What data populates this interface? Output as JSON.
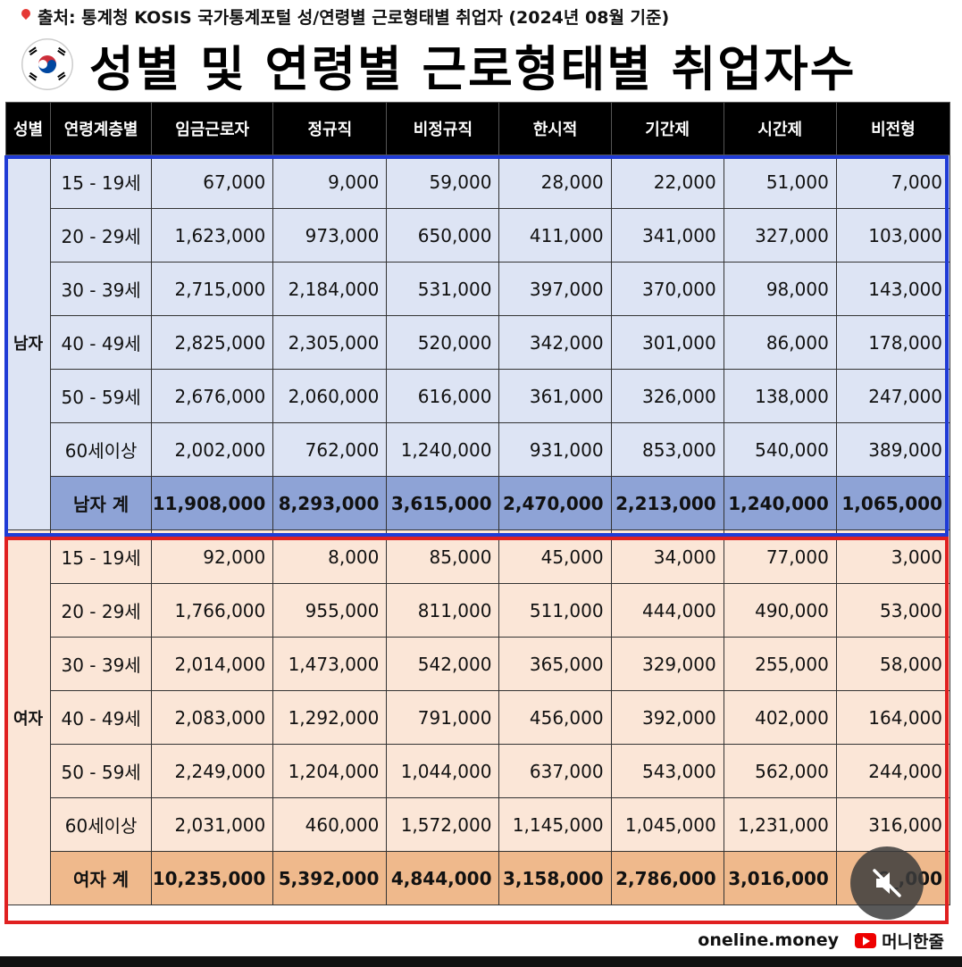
{
  "source": "출처: 통계청 KOSIS 국가통계포털 성/연령별 근로형태별 취업자 (2024년 08월 기준)",
  "title": "성별 및 연령별 근로형태별 취업자수",
  "headers": [
    "성별",
    "연령계층별",
    "임금근로자",
    "정규직",
    "비정규직",
    "한시적",
    "기간제",
    "시간제",
    "비전형"
  ],
  "male": {
    "label": "남자",
    "rows": [
      {
        "age": "15 - 19세",
        "values": [
          "67,000",
          "9,000",
          "59,000",
          "28,000",
          "22,000",
          "51,000",
          "7,000"
        ]
      },
      {
        "age": "20 - 29세",
        "values": [
          "1,623,000",
          "973,000",
          "650,000",
          "411,000",
          "341,000",
          "327,000",
          "103,000"
        ]
      },
      {
        "age": "30 - 39세",
        "values": [
          "2,715,000",
          "2,184,000",
          "531,000",
          "397,000",
          "370,000",
          "98,000",
          "143,000"
        ]
      },
      {
        "age": "40 - 49세",
        "values": [
          "2,825,000",
          "2,305,000",
          "520,000",
          "342,000",
          "301,000",
          "86,000",
          "178,000"
        ]
      },
      {
        "age": "50 - 59세",
        "values": [
          "2,676,000",
          "2,060,000",
          "616,000",
          "361,000",
          "326,000",
          "138,000",
          "247,000"
        ]
      },
      {
        "age": "60세이상",
        "values": [
          "2,002,000",
          "762,000",
          "1,240,000",
          "931,000",
          "853,000",
          "540,000",
          "389,000"
        ]
      }
    ],
    "total": {
      "age": "남자 계",
      "values": [
        "11,908,000",
        "8,293,000",
        "3,615,000",
        "2,470,000",
        "2,213,000",
        "1,240,000",
        "1,065,000"
      ]
    }
  },
  "female": {
    "label": "여자",
    "rows": [
      {
        "age": "15 - 19세",
        "values": [
          "92,000",
          "8,000",
          "85,000",
          "45,000",
          "34,000",
          "77,000",
          "3,000"
        ]
      },
      {
        "age": "20 - 29세",
        "values": [
          "1,766,000",
          "955,000",
          "811,000",
          "511,000",
          "444,000",
          "490,000",
          "53,000"
        ]
      },
      {
        "age": "30 - 39세",
        "values": [
          "2,014,000",
          "1,473,000",
          "542,000",
          "365,000",
          "329,000",
          "255,000",
          "58,000"
        ]
      },
      {
        "age": "40 - 49세",
        "values": [
          "2,083,000",
          "1,292,000",
          "791,000",
          "456,000",
          "392,000",
          "402,000",
          "164,000"
        ]
      },
      {
        "age": "50 - 59세",
        "values": [
          "2,249,000",
          "1,204,000",
          "1,044,000",
          "637,000",
          "543,000",
          "562,000",
          "244,000"
        ]
      },
      {
        "age": "60세이상",
        "values": [
          "2,031,000",
          "460,000",
          "1,572,000",
          "1,145,000",
          "1,045,000",
          "1,231,000",
          "316,000"
        ]
      }
    ],
    "total": {
      "age": "여자 계",
      "values": [
        "10,235,000",
        "5,392,000",
        "4,844,000",
        "3,158,000",
        "2,786,000",
        "3,016,000",
        "6_,000"
      ]
    }
  },
  "footer": {
    "site": "oneline.money",
    "channel": "머니한줄"
  },
  "colors": {
    "male_box": "#1f3bd6",
    "female_box": "#e02020",
    "male_bg": "#dde4f4",
    "male_total": "#8ea3d6",
    "female_bg": "#fbe6d7",
    "female_total": "#efb98c"
  },
  "icons": {
    "source": "pin-icon",
    "flag": "korea-flag-icon",
    "mute": "mute-icon",
    "youtube": "youtube-icon"
  }
}
